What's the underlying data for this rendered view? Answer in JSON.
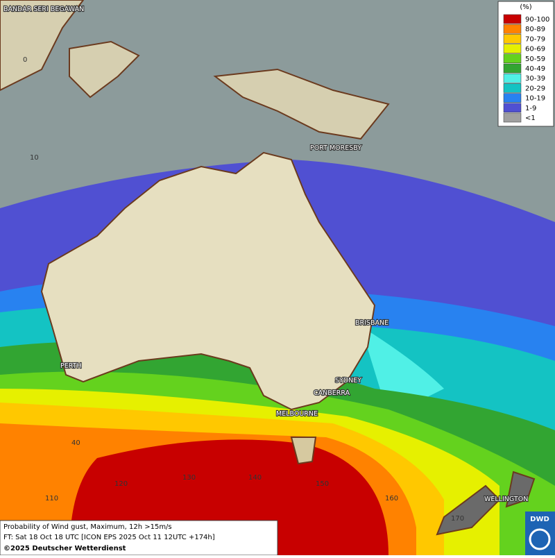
{
  "legend": {
    "title": "(%)",
    "items": [
      {
        "label": "90-100",
        "color": "#c80000"
      },
      {
        "label": "80-89",
        "color": "#ff8200"
      },
      {
        "label": "70-79",
        "color": "#ffc800"
      },
      {
        "label": "60-69",
        "color": "#e6f000"
      },
      {
        "label": "50-59",
        "color": "#64d21e"
      },
      {
        "label": "40-49",
        "color": "#32a532"
      },
      {
        "label": "30-39",
        "color": "#50f0e6"
      },
      {
        "label": "20-29",
        "color": "#14c3c3"
      },
      {
        "label": "10-19",
        "color": "#2882f0"
      },
      {
        "label": "1-9",
        "color": "#5050d2"
      },
      {
        "label": "<1",
        "color": "#a0a0a0"
      }
    ]
  },
  "places": [
    "BANDAR SERI BEGAWAN",
    "PORT MORESBY",
    "BRISBANE",
    "PERTH",
    "SYDNEY",
    "CANBERRA",
    "MELBOURNE",
    "WELLINGTON"
  ],
  "graticule": {
    "lat": [
      "0",
      "10",
      "40"
    ],
    "lon": [
      "110",
      "120",
      "130",
      "140",
      "150",
      "160",
      "170"
    ]
  },
  "footer": {
    "line1": "Probability of Wind gust, Maximum, 12h >15m/s",
    "line2": "FT: Sat 18 Oct 18 UTC [ICON EPS 2025 Oct 11 12UTC +174h]",
    "line3": "©2025 Deutscher Wetterdienst"
  },
  "logo": "DWD"
}
